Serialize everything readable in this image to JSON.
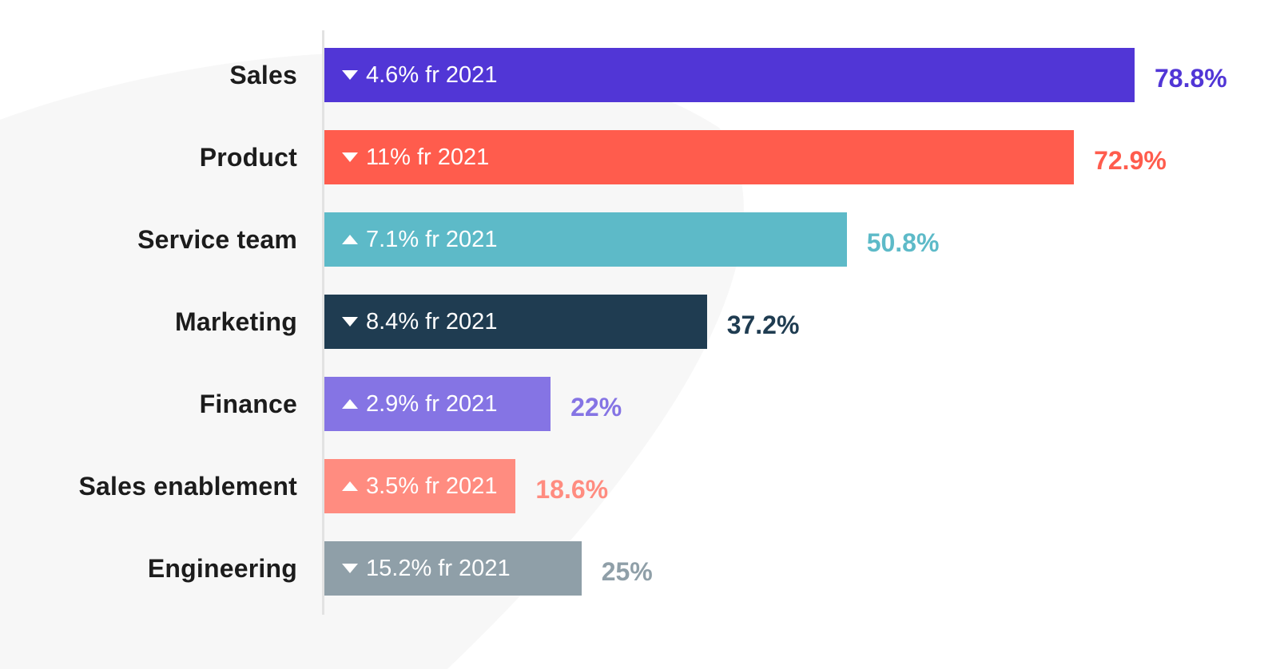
{
  "chart_data": {
    "type": "bar",
    "orientation": "horizontal",
    "title": "",
    "xlabel": "",
    "ylabel": "",
    "xlim": [
      0,
      100
    ],
    "grid": false,
    "legend": "none",
    "categories": [
      "Sales",
      "Product",
      "Service team",
      "Marketing",
      "Finance",
      "Sales enablement",
      "Engineering"
    ],
    "values": [
      78.8,
      72.9,
      50.8,
      37.2,
      22,
      18.6,
      25
    ],
    "value_labels": [
      "78.8%",
      "72.9%",
      "50.8%",
      "37.2%",
      "22%",
      "18.6%",
      "25%"
    ],
    "change_labels": [
      "4.6% fr 2021",
      "11% fr 2021",
      "7.1% fr 2021",
      "8.4% fr 2021",
      "2.9% fr 2021",
      "3.5% fr 2021",
      "15.2% fr 2021"
    ],
    "change_direction": [
      "down",
      "down",
      "up",
      "down",
      "up",
      "up",
      "down"
    ],
    "colors": [
      "#5136d6",
      "#ff5c4d",
      "#5dbac8",
      "#1f3c51",
      "#8574e4",
      "#ff8c80",
      "#8f9fa8"
    ]
  }
}
